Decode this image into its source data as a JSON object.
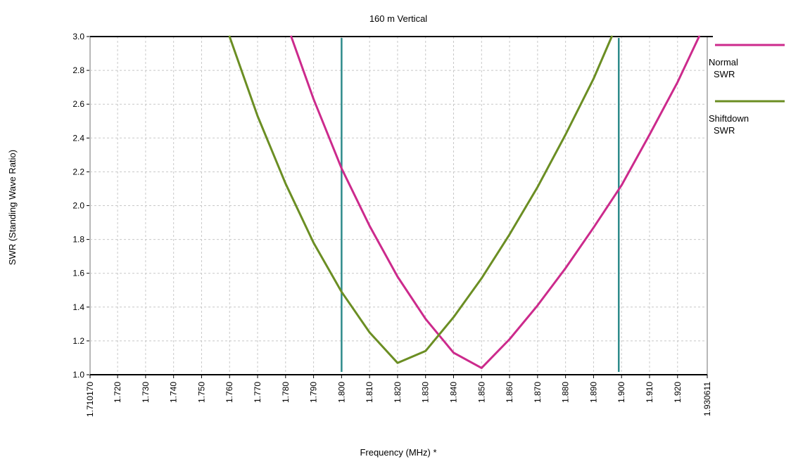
{
  "chart_data": {
    "type": "line",
    "title": "160 m Vertical",
    "xlabel": "Frequency (MHz) *",
    "ylabel": "SWR  (Standing Wave Ratio)",
    "xlim": [
      1.71017,
      1.930611
    ],
    "ylim": [
      1.0,
      3.0
    ],
    "x_tick_labels": [
      "1.710170",
      "1.720",
      "1.730",
      "1.740",
      "1.750",
      "1.760",
      "1.770",
      "1.780",
      "1.790",
      "1.800",
      "1.810",
      "1.820",
      "1.830",
      "1.840",
      "1.850",
      "1.860",
      "1.870",
      "1.880",
      "1.890",
      "1.900",
      "1.910",
      "1.920",
      "1.930611"
    ],
    "x_tick_values": [
      1.71017,
      1.72,
      1.73,
      1.74,
      1.75,
      1.76,
      1.77,
      1.78,
      1.79,
      1.8,
      1.81,
      1.82,
      1.83,
      1.84,
      1.85,
      1.86,
      1.87,
      1.88,
      1.89,
      1.9,
      1.91,
      1.92,
      1.930611
    ],
    "y_tick_labels": [
      "1.0",
      "1.2",
      "1.4",
      "1.6",
      "1.8",
      "2.0",
      "2.2",
      "2.4",
      "2.6",
      "2.8",
      "3.0"
    ],
    "y_tick_values": [
      1.0,
      1.2,
      1.4,
      1.6,
      1.8,
      2.0,
      2.2,
      2.4,
      2.6,
      2.8,
      3.0
    ],
    "grid": true,
    "legend_position": "right",
    "series": [
      {
        "name": "Normal SWR",
        "legend_lines": [
          "Normal",
          "SWR"
        ],
        "color": "#cc2a8c",
        "x": [
          1.782,
          1.79,
          1.8,
          1.81,
          1.82,
          1.83,
          1.84,
          1.85,
          1.86,
          1.87,
          1.88,
          1.89,
          1.9,
          1.91,
          1.92,
          1.9277
        ],
        "y": [
          3.0,
          2.63,
          2.22,
          1.88,
          1.58,
          1.33,
          1.13,
          1.04,
          1.21,
          1.41,
          1.63,
          1.87,
          2.12,
          2.42,
          2.73,
          3.0
        ]
      },
      {
        "name": "Shiftdown SWR",
        "legend_lines": [
          "Shiftdown",
          "SWR"
        ],
        "color": "#6b8e23",
        "x": [
          1.76,
          1.77,
          1.78,
          1.79,
          1.8,
          1.81,
          1.82,
          1.83,
          1.84,
          1.85,
          1.86,
          1.87,
          1.88,
          1.89,
          1.8965
        ],
        "y": [
          3.0,
          2.53,
          2.13,
          1.78,
          1.49,
          1.25,
          1.07,
          1.14,
          1.34,
          1.57,
          1.83,
          2.11,
          2.42,
          2.75,
          3.0
        ]
      }
    ],
    "markers": [
      {
        "name": "band-edge-low",
        "x": 1.8,
        "color": "#2e8b8b"
      },
      {
        "name": "band-edge-high",
        "x": 1.899,
        "color": "#2e8b8b"
      }
    ]
  }
}
